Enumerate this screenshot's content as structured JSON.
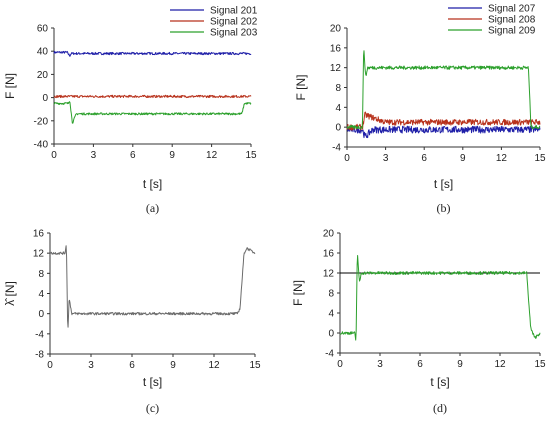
{
  "chart_data": [
    {
      "id": "a",
      "type": "line",
      "panel_label": "(a)",
      "xlabel": "t [s]",
      "ylabel": "F [N]",
      "xlim": [
        0,
        15
      ],
      "ylim": [
        -40,
        60
      ],
      "xticks": [
        "0",
        "3",
        "6",
        "9",
        "12",
        "15"
      ],
      "yticks": [
        "-40",
        "-20",
        "0",
        "20",
        "40",
        "60"
      ],
      "grid": false,
      "legend": "top-right",
      "series": [
        {
          "name": "Signal 201",
          "color": "#1f1fa8",
          "noise": 1.0,
          "x": [
            0,
            1,
            1.2,
            1.3,
            1.5,
            14.2,
            14.3,
            15
          ],
          "y": [
            39,
            39,
            36,
            38,
            38,
            38,
            38,
            38
          ]
        },
        {
          "name": "Signal 202",
          "color": "#b8321c",
          "noise": 1.0,
          "x": [
            0,
            15
          ],
          "y": [
            1,
            1
          ]
        },
        {
          "name": "Signal 203",
          "color": "#2ca02c",
          "noise": 0.9,
          "x": [
            0,
            1.1,
            1.2,
            1.4,
            1.7,
            14.3,
            14.5,
            15
          ],
          "y": [
            -5,
            -5,
            -2,
            -22,
            -14,
            -14,
            -5,
            -5
          ]
        }
      ]
    },
    {
      "id": "b",
      "type": "line",
      "panel_label": "(b)",
      "xlabel": "t [s]",
      "ylabel": "F [N]",
      "xlim": [
        0,
        15
      ],
      "ylim": [
        -4,
        20
      ],
      "xticks": [
        "0",
        "3",
        "6",
        "9",
        "12",
        "15"
      ],
      "yticks": [
        "-4",
        "0",
        "4",
        "8",
        "12",
        "16",
        "20"
      ],
      "grid": false,
      "legend": "top-right",
      "series": [
        {
          "name": "Signal 207",
          "color": "#1f1fa8",
          "noise": 0.7,
          "x": [
            0,
            1.2,
            1.4,
            2,
            15
          ],
          "y": [
            -0.5,
            -0.5,
            -2,
            -0.5,
            -0.5
          ]
        },
        {
          "name": "Signal 208",
          "color": "#b8321c",
          "noise": 0.6,
          "x": [
            0,
            1.2,
            1.4,
            3,
            15
          ],
          "y": [
            0,
            0,
            2.5,
            1,
            1
          ]
        },
        {
          "name": "Signal 209",
          "color": "#2ca02c",
          "noise": 0.35,
          "x": [
            0,
            1.2,
            1.3,
            1.45,
            1.6,
            14.1,
            14.3,
            15
          ],
          "y": [
            0,
            0,
            16.5,
            10,
            12,
            12,
            0,
            0
          ]
        }
      ]
    },
    {
      "id": "c",
      "type": "line",
      "panel_label": "(c)",
      "xlabel": "t [s]",
      "ylabel": "λ̂ [N]",
      "xlim": [
        0,
        15
      ],
      "ylim": [
        -8,
        16
      ],
      "xticks": [
        "0",
        "3",
        "6",
        "9",
        "12",
        "15"
      ],
      "yticks": [
        "-8",
        "-4",
        "0",
        "4",
        "8",
        "12",
        "16"
      ],
      "grid": false,
      "legend": "none",
      "series": [
        {
          "name": "",
          "color": "#6b6b6b",
          "noise": 0.25,
          "x": [
            0,
            1.1,
            1.2,
            1.3,
            1.4,
            1.6,
            13.7,
            13.9,
            14.2,
            14.4,
            15
          ],
          "y": [
            12,
            12,
            14,
            -4,
            3,
            0,
            0,
            1,
            12,
            13,
            12
          ]
        }
      ]
    },
    {
      "id": "d",
      "type": "line",
      "panel_label": "(d)",
      "xlabel": "t [s]",
      "ylabel": "F [N]",
      "xlim": [
        0,
        15
      ],
      "ylim": [
        -4,
        20
      ],
      "xticks": [
        "0",
        "3",
        "6",
        "9",
        "12",
        "15"
      ],
      "yticks": [
        "-4",
        "0",
        "4",
        "8",
        "12",
        "16",
        "20"
      ],
      "grid": false,
      "legend": "none",
      "reference": {
        "y": 12,
        "color": "#000000"
      },
      "series": [
        {
          "name": "",
          "color": "#2ca02c",
          "noise": 0.3,
          "x": [
            0,
            1.1,
            1.2,
            1.3,
            1.45,
            1.6,
            14.0,
            14.3,
            14.6,
            15
          ],
          "y": [
            0,
            0,
            -2,
            16.5,
            10,
            12,
            12,
            1,
            -1,
            0
          ]
        }
      ]
    }
  ]
}
